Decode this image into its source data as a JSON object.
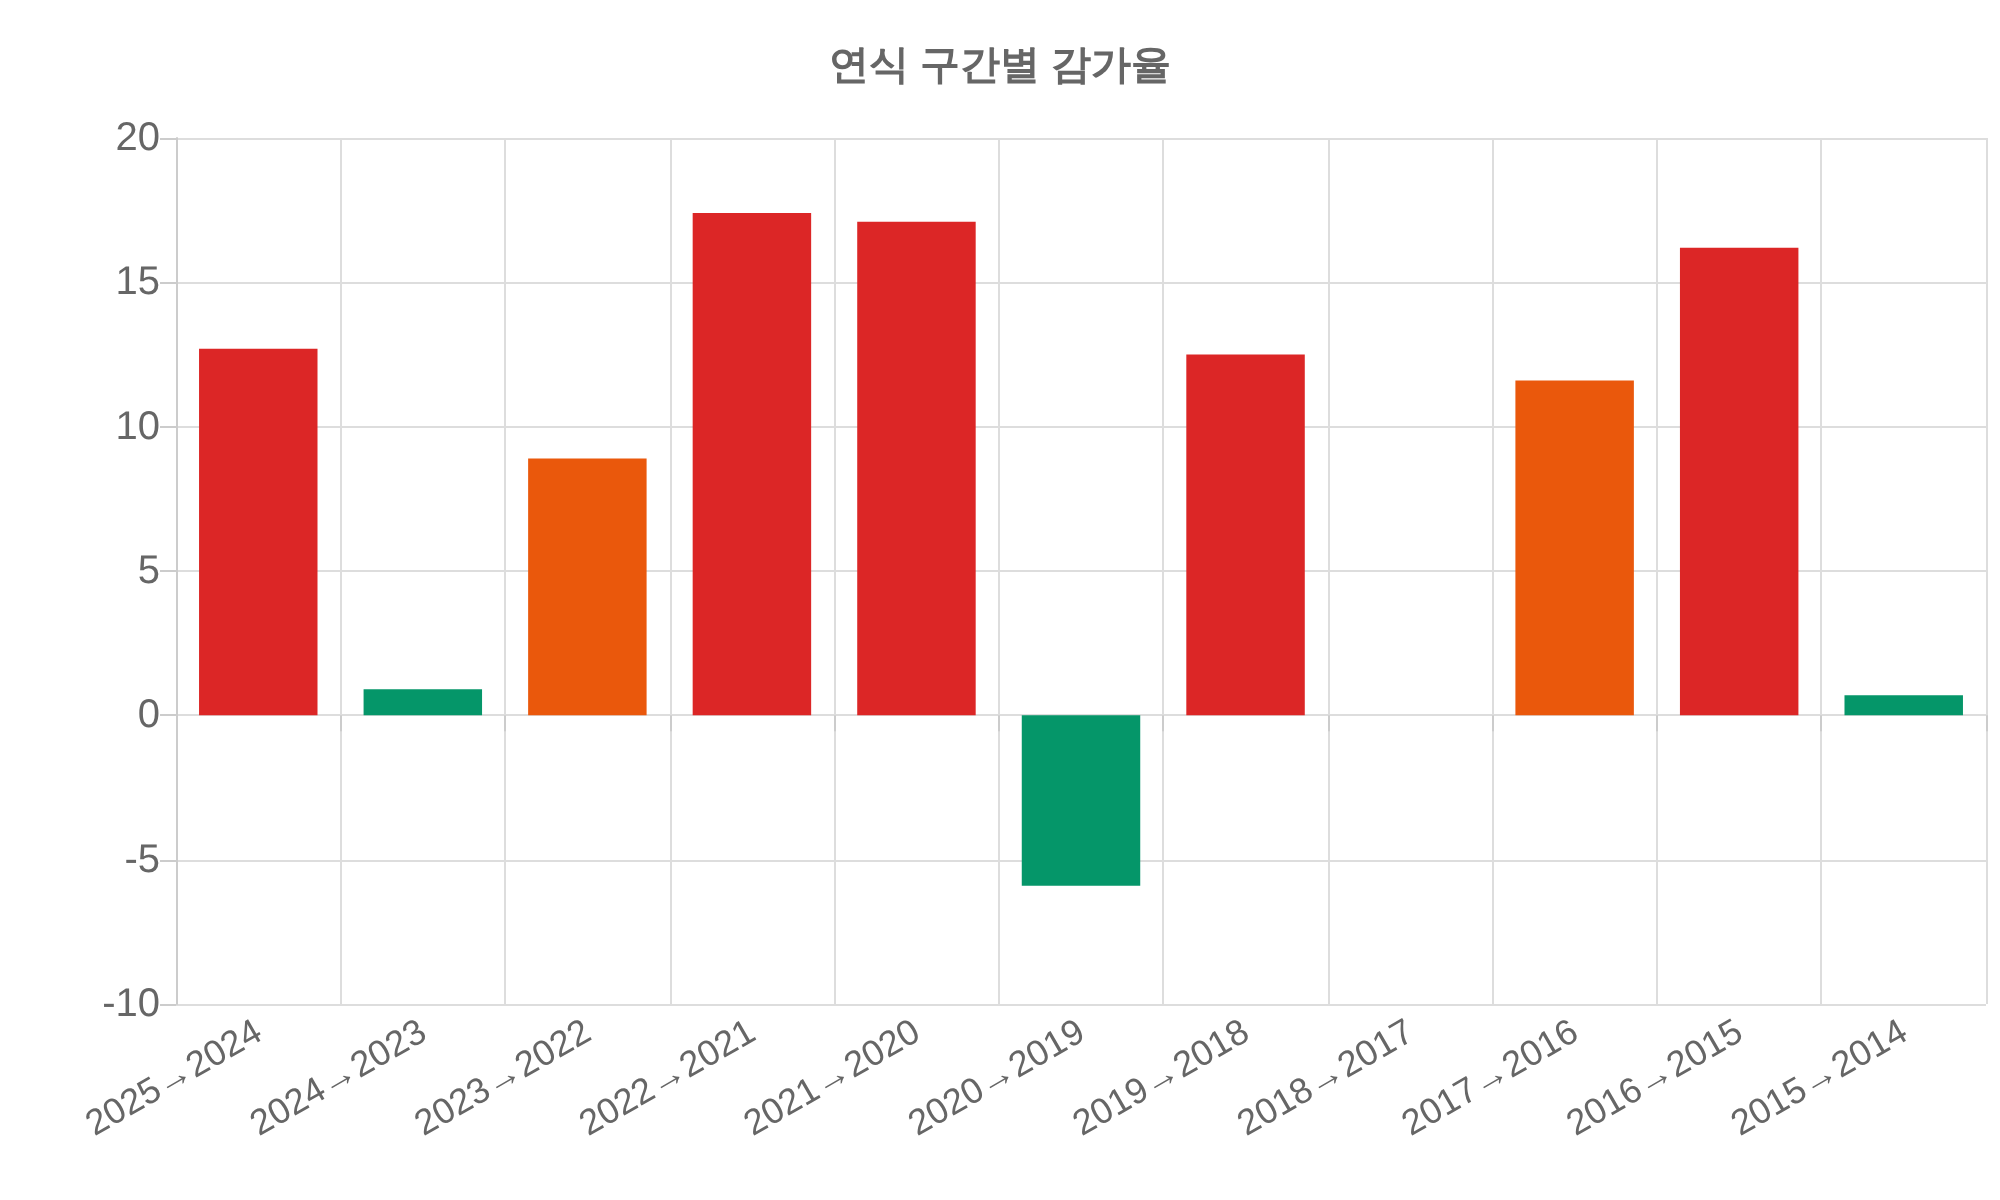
{
  "chart_data": {
    "type": "bar",
    "title": "연식 구간별 감가율",
    "categories": [
      "2025→2024",
      "2024→2023",
      "2023→2022",
      "2022→2021",
      "2021→2020",
      "2020→2019",
      "2019→2018",
      "2018→2017",
      "2017→2016",
      "2016→2015",
      "2015→2014"
    ],
    "values": [
      12.7,
      0.9,
      8.9,
      17.4,
      17.1,
      -5.9,
      12.5,
      0,
      11.6,
      16.2,
      0.7
    ],
    "colors": [
      "#dc2626",
      "#059669",
      "#ea580c",
      "#dc2626",
      "#dc2626",
      "#059669",
      "#dc2626",
      "#dc2626",
      "#ea580c",
      "#dc2626",
      "#059669"
    ],
    "ylim": [
      -10,
      20
    ],
    "yticks": [
      -10,
      -5,
      0,
      5,
      10,
      15,
      20
    ],
    "grid": true
  }
}
